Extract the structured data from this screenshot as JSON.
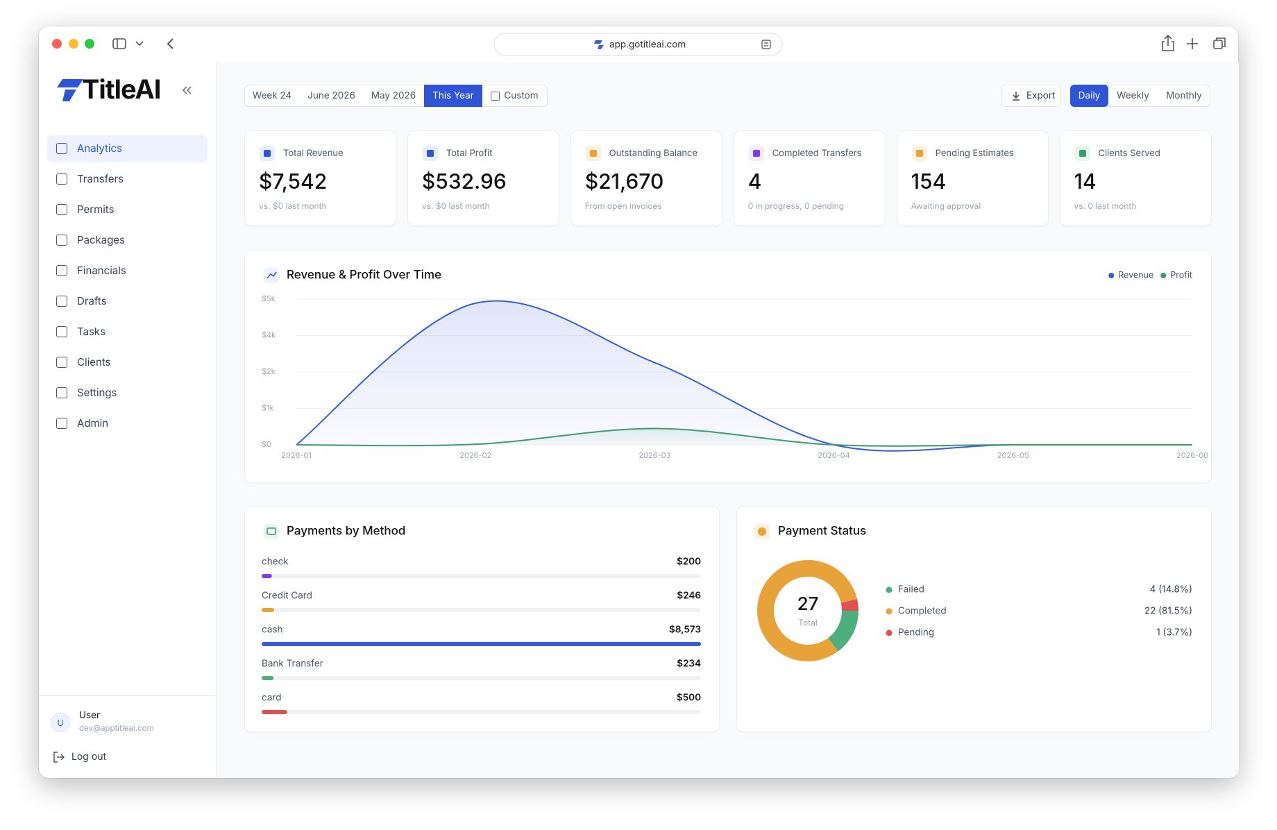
{
  "browser": {
    "url": "app.gotitleai.com"
  },
  "sidebar": {
    "brand": "TitleAI",
    "nav": [
      "Analytics",
      "Transfers",
      "Permits",
      "Packages",
      "Financials",
      "Drafts",
      "Tasks",
      "Clients",
      "Settings",
      "Admin"
    ],
    "active": 0,
    "user": {
      "avatar": "U",
      "name": "User",
      "email": "dev@apptitleai.com"
    },
    "logout": "Log out"
  },
  "filters": {
    "periods": [
      "Week 24",
      "June 2026",
      "May 2026",
      "This Year",
      "Custom"
    ],
    "active_period": 3,
    "export": "Export",
    "granularity": [
      "Daily",
      "Weekly",
      "Monthly"
    ],
    "active_granularity": 0
  },
  "stats": [
    {
      "label": "Total Revenue",
      "value": "$7,542",
      "note": "vs. $0 last month"
    },
    {
      "label": "Total Profit",
      "value": "$532.96",
      "note": "vs. $0 last month"
    },
    {
      "label": "Outstanding Balance",
      "value": "$21,670",
      "note": "From open invoices"
    },
    {
      "label": "Completed Transfers",
      "value": "4",
      "note": "0 in progress, 0 pending"
    },
    {
      "label": "Pending Estimates",
      "value": "154",
      "note": "Awaiting approval"
    },
    {
      "label": "Clients Served",
      "value": "14",
      "note": "vs. 0 last month"
    }
  ],
  "chart_data": [
    {
      "type": "line",
      "title": "Revenue & Profit Over Time",
      "x": [
        "2026-01",
        "2026-02",
        "2026-03",
        "2026-04",
        "2026-05",
        "2026-06"
      ],
      "series": [
        {
          "name": "Revenue",
          "color": "#3b5bdb",
          "values": [
            0,
            4860,
            2820,
            0,
            0,
            0
          ]
        },
        {
          "name": "Profit",
          "color": "#3d9a6e",
          "values": [
            0,
            20,
            560,
            0,
            0,
            0
          ]
        }
      ],
      "ylim": [
        0,
        5000
      ],
      "yticks": [
        {
          "value": 0,
          "label": "$0"
        },
        {
          "value": 1250,
          "label": "$1k"
        },
        {
          "value": 2500,
          "label": "$2k"
        },
        {
          "value": 3750,
          "label": "$4k"
        },
        {
          "value": 5000,
          "label": "$5k"
        }
      ],
      "grid": true,
      "legend": "top-right"
    },
    {
      "type": "bar",
      "title": "Payments by Method",
      "categories": [
        "check",
        "Credit Card",
        "cash",
        "Bank Transfer",
        "card"
      ],
      "values": [
        200,
        246,
        8573,
        234,
        500
      ],
      "value_labels": [
        "$200",
        "$246",
        "$8,573",
        "$234",
        "$500"
      ],
      "colors": [
        "#7c3aed",
        "#e8a23a",
        "#3b5bdb",
        "#4caf7d",
        "#e05252"
      ],
      "xlim": [
        0,
        8573
      ]
    },
    {
      "type": "pie",
      "title": "Payment Status",
      "categories": [
        "Failed",
        "Completed",
        "Pending"
      ],
      "values": [
        4,
        22,
        1
      ],
      "value_labels": [
        "4 (14.8%)",
        "22 (81.5%)",
        "1 (3.7%)"
      ],
      "colors": [
        "#4caf7d",
        "#e8a23a",
        "#e05252"
      ],
      "center_value": "27",
      "center_label": "Total"
    }
  ]
}
